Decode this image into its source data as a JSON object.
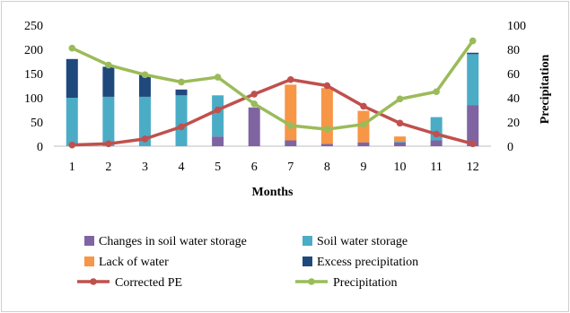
{
  "chart_data": {
    "type": "bar",
    "xlabel": "Months",
    "ylabel_left": "",
    "ylabel_right": "Precipitation",
    "categories": [
      "1",
      "2",
      "3",
      "4",
      "5",
      "6",
      "7",
      "8",
      "9",
      "10",
      "11",
      "12"
    ],
    "y_left": {
      "min": 0,
      "max": 250,
      "ticks": [
        "0",
        "50",
        "100",
        "150",
        "200",
        "250"
      ]
    },
    "y_right": {
      "min": 0,
      "max": 100,
      "ticks": [
        "0",
        "20",
        "40",
        "60",
        "80",
        "100"
      ]
    },
    "bar_series": [
      {
        "name": "Changes in soil water storage",
        "color": "#8064a2",
        "values": [
          0,
          0,
          0,
          0,
          20,
          80,
          12,
          5,
          8,
          8,
          12,
          85
        ]
      },
      {
        "name": "Soil water storage",
        "color": "#4bacc6",
        "values": [
          100,
          102,
          102,
          105,
          85,
          0,
          0,
          0,
          0,
          2,
          48,
          105
        ]
      },
      {
        "name": "Lack of water",
        "color": "#f79646",
        "values": [
          0,
          0,
          0,
          0,
          0,
          0,
          115,
          115,
          65,
          10,
          0,
          0
        ]
      },
      {
        "name": "Excess precipitation",
        "color": "#1f497d",
        "values": [
          80,
          62,
          45,
          12,
          0,
          0,
          0,
          0,
          0,
          0,
          0,
          3
        ]
      }
    ],
    "line_series": [
      {
        "name": "Corrected PE",
        "color": "#c0504d",
        "axis": "right",
        "values": [
          1,
          2,
          6,
          16,
          30,
          43,
          55,
          50,
          33,
          19,
          10,
          2
        ]
      },
      {
        "name": "Precipitation",
        "color": "#9bbb59",
        "axis": "right",
        "values": [
          81,
          67,
          59,
          53,
          57,
          35,
          17,
          14,
          18,
          39,
          45,
          87
        ]
      }
    ],
    "legend_position": "bottom",
    "grid": false
  }
}
